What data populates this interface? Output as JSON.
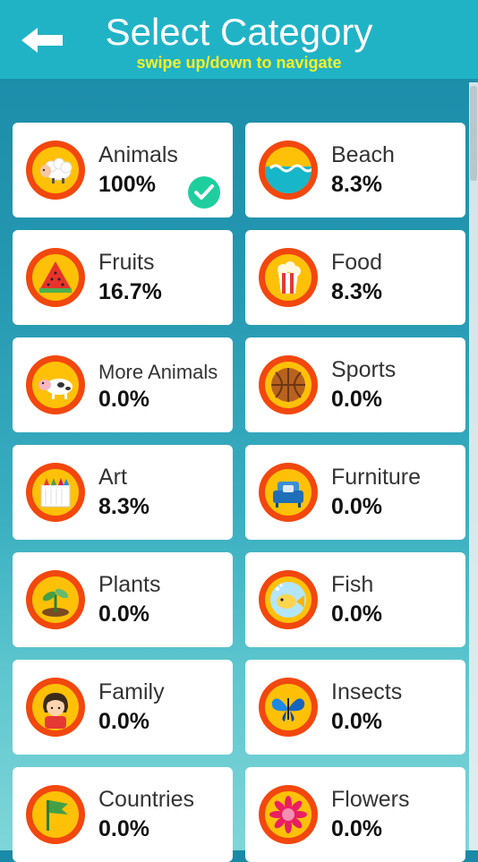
{
  "header": {
    "title": "Select Category",
    "subtitle": "swipe up/down to navigate",
    "back_icon": "arrow-left-icon"
  },
  "colors": {
    "header_bg": "#20b3c6",
    "subtitle": "#f6ef2a",
    "badge_ring": "#f2470e",
    "badge_fill": "#ffc107",
    "check": "#1fce9e"
  },
  "categories": [
    {
      "name": "Animals",
      "percent": "100%",
      "icon": "sheep-icon",
      "completed": true
    },
    {
      "name": "Beach",
      "percent": "8.3%",
      "icon": "water-icon",
      "completed": false
    },
    {
      "name": "Fruits",
      "percent": "16.7%",
      "icon": "watermelon-icon",
      "completed": false
    },
    {
      "name": "Food",
      "percent": "8.3%",
      "icon": "popcorn-icon",
      "completed": false
    },
    {
      "name": "More Animals",
      "percent": "0.0%",
      "icon": "cow-icon",
      "completed": false
    },
    {
      "name": "Sports",
      "percent": "0.0%",
      "icon": "basketball-icon",
      "completed": false
    },
    {
      "name": "Art",
      "percent": "8.3%",
      "icon": "crayons-icon",
      "completed": false
    },
    {
      "name": "Furniture",
      "percent": "0.0%",
      "icon": "armchair-icon",
      "completed": false
    },
    {
      "name": "Plants",
      "percent": "0.0%",
      "icon": "sprout-icon",
      "completed": false
    },
    {
      "name": "Fish",
      "percent": "0.0%",
      "icon": "fish-icon",
      "completed": false
    },
    {
      "name": "Family",
      "percent": "0.0%",
      "icon": "girl-icon",
      "completed": false
    },
    {
      "name": "Insects",
      "percent": "0.0%",
      "icon": "butterfly-icon",
      "completed": false
    },
    {
      "name": "Countries",
      "percent": "0.0%",
      "icon": "flag-icon",
      "completed": false
    },
    {
      "name": "Flowers",
      "percent": "0.0%",
      "icon": "flower-icon",
      "completed": false
    }
  ]
}
